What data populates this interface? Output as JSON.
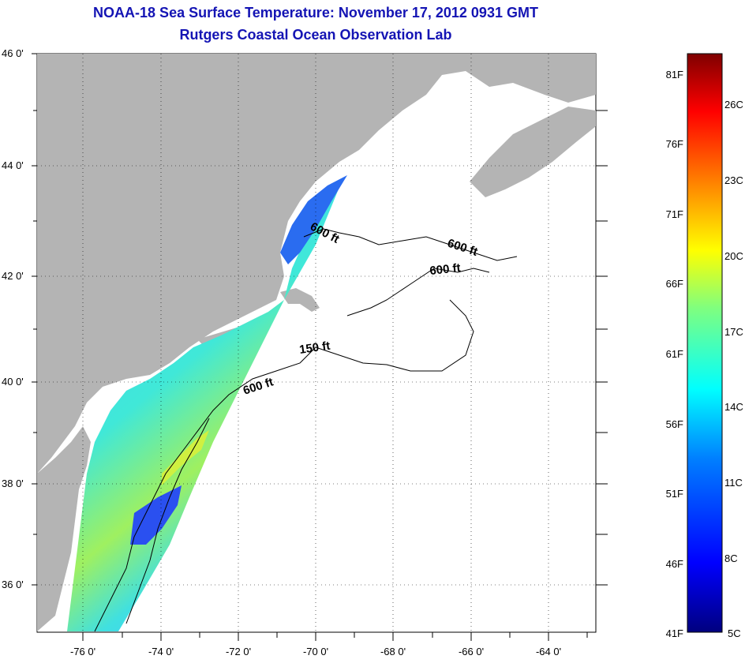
{
  "title": "NOAA-18 Sea Surface Temperature:  November 17, 2012 0931 GMT",
  "subtitle": "Rutgers Coastal Ocean Observation Lab",
  "lat_labels": [
    "46 0'",
    "44 0'",
    "42 0'",
    "40 0'",
    "38 0'",
    "36 0'"
  ],
  "lon_labels": [
    "-76 0'",
    "-74 0'",
    "-72 0'",
    "-70 0'",
    "-68 0'",
    "-66 0'",
    "-64 0'"
  ],
  "contours": [
    {
      "label": "600 ft"
    },
    {
      "label": "600 ft"
    },
    {
      "label": "600 ft"
    },
    {
      "label": "150 ft"
    },
    {
      "label": "600 ft"
    }
  ],
  "colorbar": {
    "fahrenheit": [
      "81F",
      "76F",
      "71F",
      "66F",
      "61F",
      "56F",
      "51F",
      "46F",
      "41F"
    ],
    "celsius": [
      "26C",
      "23C",
      "20C",
      "17C",
      "14C",
      "11C",
      "8C",
      "5C"
    ],
    "colors": [
      "#7f0000",
      "#ff0000",
      "#ff7f00",
      "#ffff00",
      "#7fff7f",
      "#00ffff",
      "#007fff",
      "#0000ff",
      "#00007f"
    ]
  },
  "colors": {
    "title": "#1414b4",
    "land": "#b4b4b4",
    "ocean": "#ffffff",
    "sst_warm": "#d8f030",
    "sst_mid": "#3ce6e0",
    "sst_cool": "#2060ff"
  }
}
